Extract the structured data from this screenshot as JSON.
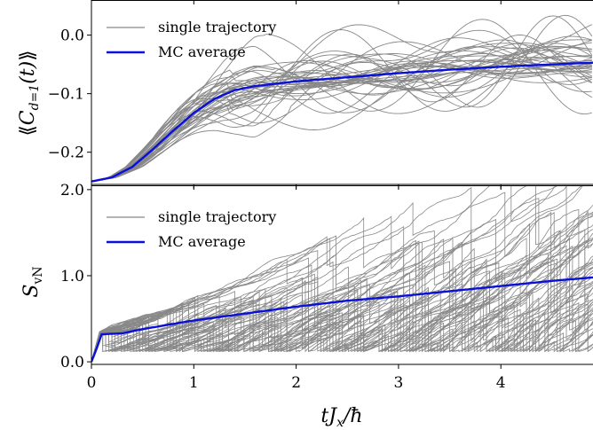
{
  "chart_data": [
    {
      "type": "line",
      "panel": "top",
      "ylabel": "⟪C_{d=1}(t)⟫",
      "xlim": [
        0,
        4.9
      ],
      "ylim": [
        -0.255,
        0.06
      ],
      "yticks": [
        0.0,
        -0.1,
        -0.2
      ],
      "ytick_labels": [
        "0.0",
        "−0.1",
        "−0.2"
      ],
      "xticks": [
        0,
        1,
        2,
        3,
        4
      ],
      "legend_position": "top-left",
      "series": [
        {
          "name": "single trajectory",
          "color": "#888888",
          "count": 40
        },
        {
          "name": "MC average",
          "color": "#0a10d8",
          "x": [
            0,
            0.2,
            0.4,
            0.6,
            0.8,
            1.0,
            1.2,
            1.4,
            1.6,
            2.0,
            2.5,
            3.0,
            3.5,
            4.0,
            4.5,
            4.9
          ],
          "y": [
            -0.25,
            -0.243,
            -0.225,
            -0.195,
            -0.163,
            -0.133,
            -0.109,
            -0.094,
            -0.087,
            -0.079,
            -0.072,
            -0.065,
            -0.059,
            -0.054,
            -0.05,
            -0.047
          ]
        }
      ]
    },
    {
      "type": "line",
      "panel": "bottom",
      "ylabel": "S_vN",
      "xlabel": "tJ_x/ħ",
      "xlim": [
        0,
        4.9
      ],
      "ylim": [
        -0.03,
        2.05
      ],
      "yticks": [
        0.0,
        1.0,
        2.0
      ],
      "ytick_labels": [
        "0.0",
        "1.0",
        "2.0"
      ],
      "xticks": [
        0,
        1,
        2,
        3,
        4
      ],
      "xtick_labels": [
        "0",
        "1",
        "2",
        "3",
        "4"
      ],
      "legend_position": "top-left",
      "series": [
        {
          "name": "single trajectory",
          "color": "#888888",
          "count": 60
        },
        {
          "name": "MC average",
          "color": "#0a10d8",
          "x": [
            0,
            0.05,
            0.1,
            0.3,
            0.5,
            1.0,
            1.5,
            2.0,
            2.5,
            3.0,
            3.5,
            4.0,
            4.5,
            4.9
          ],
          "y": [
            0.0,
            0.15,
            0.32,
            0.33,
            0.38,
            0.48,
            0.56,
            0.64,
            0.71,
            0.76,
            0.82,
            0.88,
            0.94,
            0.98
          ]
        }
      ]
    }
  ]
}
